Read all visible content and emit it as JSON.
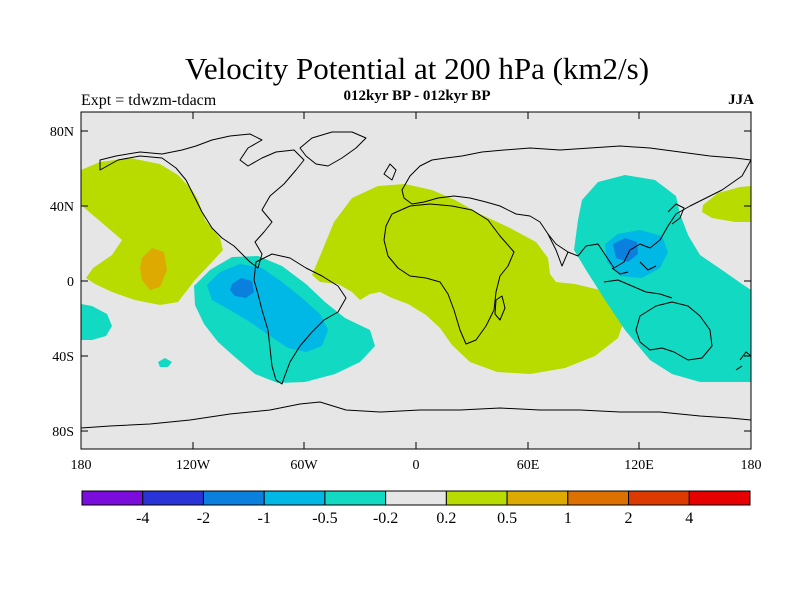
{
  "title": "Velocity Potential at 200 hPa (km2/s)",
  "subtitle": "012kyr BP - 012kyr BP",
  "left_label": "Expt = tdwzm-tdacm",
  "season": "JJA",
  "lat_ticks": [
    "80N",
    "40N",
    "0",
    "40S",
    "80S"
  ],
  "lon_ticks": [
    "180",
    "120W",
    "60W",
    "0",
    "60E",
    "120E",
    "180"
  ],
  "colorbar": {
    "labels": [
      "-4",
      "-2",
      "-1",
      "-0.5",
      "-0.2",
      "0.2",
      "0.5",
      "1",
      "2",
      "4"
    ],
    "colors": [
      "#7a0ddb",
      "#2a33d6",
      "#0a7fdd",
      "#00b8e6",
      "#12d9c1",
      "#e6e6e6",
      "#b8dc00",
      "#dcaa00",
      "#dc7000",
      "#dc3a00",
      "#e60000"
    ]
  },
  "colors": {
    "neutral": "#e6e6e6",
    "neg_weak": "#12d9c1",
    "neg_mid": "#00b8e6",
    "neg_strong": "#0a7fdd",
    "pos_weak": "#b8dc00",
    "pos_mid": "#dcaa00"
  }
}
